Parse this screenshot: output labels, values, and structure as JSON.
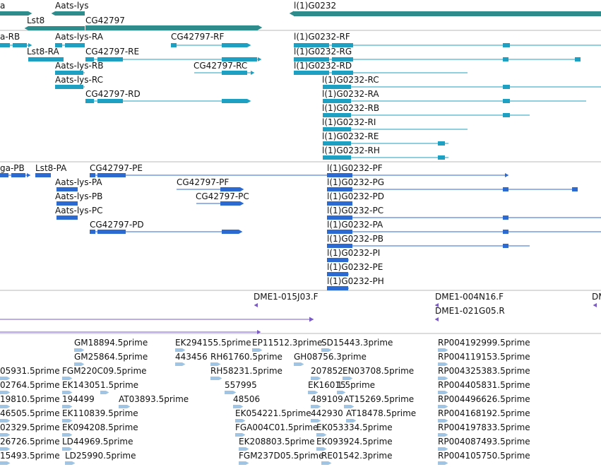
{
  "colors": {
    "background": "#ffffff",
    "gene": "#2e8c8c",
    "transcript": "#1da0c2",
    "cds": "#2c6ad1",
    "clone_end": "#7b5bc4",
    "est": "#9fc4e4",
    "separator": "#b8b8b8",
    "text": "#111111"
  },
  "tracks": [
    {
      "id": "genes",
      "color_key": "gene",
      "labels": [
        "a",
        "Aats-lys",
        "Lst8",
        "CG42797",
        "l(1)G0232"
      ],
      "icons": []
    },
    {
      "id": "transcripts",
      "color_key": "transcript",
      "labels": [
        "a-RB",
        "Aats-lys-RA",
        "CG42797-RF",
        "l(1)G0232-RF",
        "Lst8-RA",
        "CG42797-RE",
        "l(1)G0232-RG",
        "Aats-lys-RB",
        "CG42797-RC",
        "l(1)G0232-RD",
        "Aats-lys-RC",
        "l(1)G0232-RC",
        "CG42797-RD",
        "l(1)G0232-RA",
        "l(1)G0232-RB",
        "l(1)G0232-RI",
        "l(1)G0232-RE",
        "l(1)G0232-RH"
      ],
      "icons": []
    },
    {
      "id": "coding",
      "color_key": "cds",
      "labels": [
        "ga-PB",
        "Lst8-PA",
        "CG42797-PE",
        "l(1)G0232-PF",
        "Aats-lys-PA",
        "CG42797-PF",
        "l(1)G0232-PG",
        "Aats-lys-PB",
        "CG42797-PC",
        "l(1)G0232-PD",
        "Aats-lys-PC",
        "l(1)G0232-PC",
        "CG42797-PD",
        "l(1)G0232-PA",
        "l(1)G0232-PB",
        "l(1)G0232-PI",
        "l(1)G0232-PE",
        "l(1)G0232-PH"
      ],
      "icons": []
    },
    {
      "id": "clone-ends",
      "color_key": "clone_end",
      "labels": [
        "DME1-015J03.F",
        "DME1-004N16.F",
        "DME1-021G05.R",
        "DM"
      ],
      "icons": [
        "reverse-arrow-icon",
        "reverse-arrow-icon"
      ]
    },
    {
      "id": "est",
      "color_key": "est",
      "labels": [
        "GM18894.5prime",
        "EK294155.5prime",
        "EP11512.3prime",
        "SD15443.3prime",
        "RP004192999.5prime",
        "GM25864.5prime",
        "443456",
        "RH61760.5prime",
        "GH08756.3prime",
        "RP004119153.5prime",
        "05931.5prime",
        "FGM220C09.5prime",
        "RH58231.5prime",
        "207852",
        "EN03708.5prime",
        "RP004325383.5prime",
        "02764.5prime",
        "EK14305",
        "1.5prime",
        "557995",
        "EK16015",
        "1.5prime",
        "RP004405831.5prime",
        "19810.5prime",
        "194499",
        "AT03893.5prime",
        "48506",
        "489109",
        "AT15269.5prime",
        "RP004496626.5prime",
        "46505.5prime",
        "EK110839.5prime",
        "EK054221.5prime",
        "442930",
        "AT18478.5prime",
        "RP004168192.5prime",
        "02329.5prime",
        "EK094208.5prime",
        "FGA004C01.5prime",
        "EK053334.5prime",
        "RP004197833.5prime",
        "26726.5prime",
        "LD44969.5prime",
        "EK208803.5prime",
        "EK093924.5prime",
        "RP004087493.5prime",
        "15493.5prime",
        "LD25990.5prime",
        "FGM237D05.5prime",
        "RE01542.3prime",
        "RP004105750.5prime"
      ],
      "icons": [
        "forward-arrow-icon"
      ]
    }
  ]
}
